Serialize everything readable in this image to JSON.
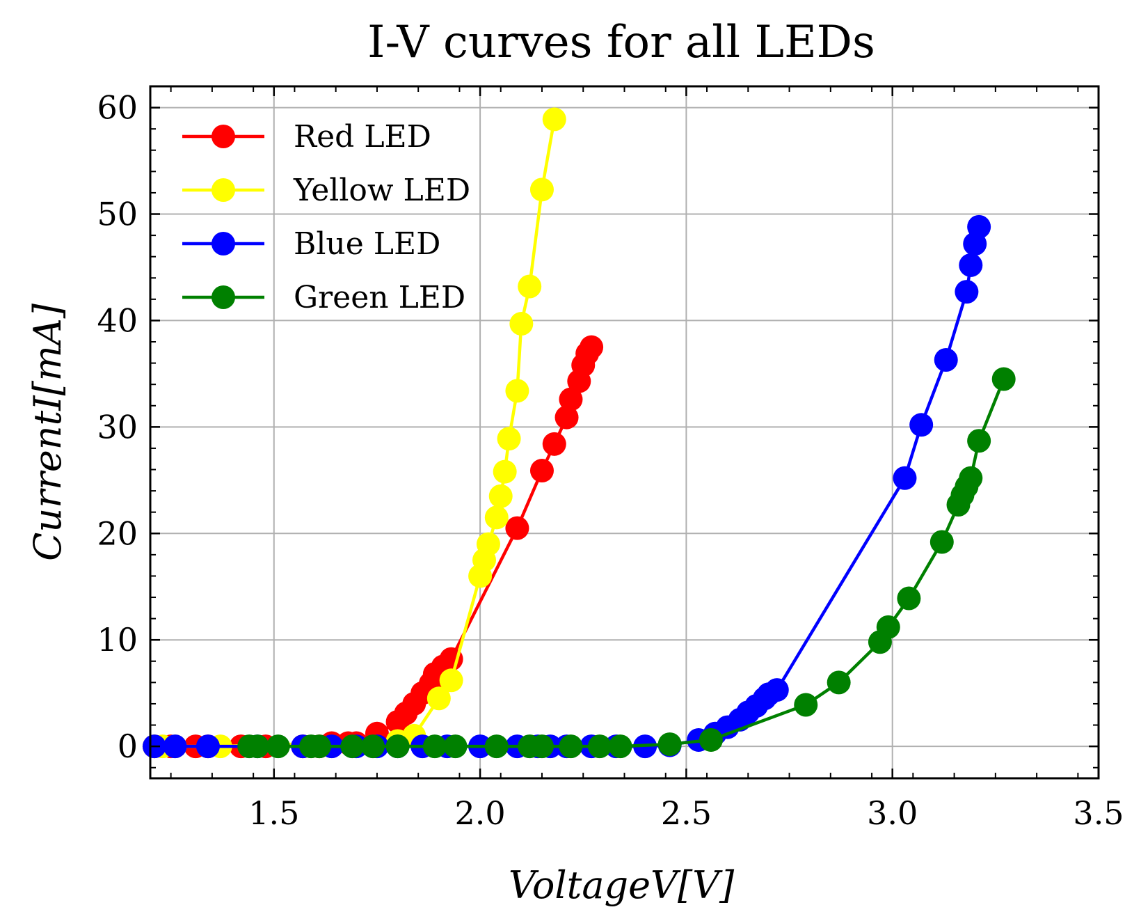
{
  "chart_data": {
    "type": "line",
    "title": "I-V curves for all LEDs",
    "xlabel": "VoltageV[V]",
    "ylabel": "CurrentI[mA]",
    "xlim": [
      1.2,
      3.5
    ],
    "ylim": [
      -3,
      62
    ],
    "xticks": [
      1.5,
      2.0,
      2.5,
      3.0,
      3.5
    ],
    "xtick_labels": [
      "1.5",
      "2.0",
      "2.5",
      "3.0",
      "3.5"
    ],
    "yticks": [
      0,
      10,
      20,
      30,
      40,
      50,
      60
    ],
    "ytick_labels": [
      "0",
      "10",
      "20",
      "30",
      "40",
      "50",
      "60"
    ],
    "grid": true,
    "legend_position": "top-left",
    "series": [
      {
        "name": "Red LED",
        "color": "#ff0000",
        "x": [
          1.21,
          1.25,
          1.31,
          1.34,
          1.42,
          1.48,
          1.57,
          1.61,
          1.64,
          1.68,
          1.7,
          1.75,
          1.8,
          1.82,
          1.84,
          1.86,
          1.88,
          1.89,
          1.91,
          1.93,
          2.09,
          2.15,
          2.18,
          2.21,
          2.22,
          2.24,
          2.25,
          2.26,
          2.27
        ],
        "y": [
          0,
          0,
          0,
          0,
          0,
          0,
          0,
          0,
          0.3,
          0.3,
          0.3,
          1.2,
          2.3,
          3.1,
          4.0,
          5.0,
          5.9,
          6.8,
          7.5,
          8.2,
          20.5,
          25.9,
          28.4,
          30.9,
          32.6,
          34.3,
          35.8,
          36.9,
          37.5
        ]
      },
      {
        "name": "Yellow LED",
        "color": "#ffff00",
        "x": [
          1.21,
          1.23,
          1.26,
          1.37,
          1.8,
          1.84,
          1.9,
          1.93,
          2.0,
          2.01,
          2.02,
          2.04,
          2.05,
          2.06,
          2.07,
          2.09,
          2.1,
          2.12,
          2.15,
          2.18
        ],
        "y": [
          0,
          0,
          0,
          0,
          0.5,
          1.0,
          4.5,
          6.2,
          16.0,
          17.5,
          19.0,
          21.5,
          23.5,
          25.8,
          28.9,
          33.4,
          39.7,
          43.2,
          52.3,
          58.9
        ]
      },
      {
        "name": "Blue LED",
        "color": "#0000ff",
        "x": [
          1.21,
          1.26,
          1.34,
          1.46,
          1.57,
          1.64,
          1.7,
          1.75,
          1.8,
          1.86,
          1.92,
          2.0,
          2.09,
          2.14,
          2.17,
          2.21,
          2.27,
          2.33,
          2.4,
          2.46,
          2.53,
          2.57,
          2.6,
          2.63,
          2.65,
          2.67,
          2.69,
          2.7,
          2.72,
          3.03,
          3.07,
          3.13,
          3.18,
          3.19,
          3.2,
          3.21
        ],
        "y": [
          0,
          0,
          0,
          0,
          0,
          0,
          0,
          0,
          0,
          0,
          0,
          0,
          0,
          0,
          0,
          0,
          0,
          0,
          0,
          0.1,
          0.6,
          1.2,
          1.8,
          2.5,
          3.2,
          3.8,
          4.5,
          4.9,
          5.3,
          25.2,
          30.2,
          36.3,
          42.7,
          45.2,
          47.2,
          48.8
        ]
      },
      {
        "name": "Green LED",
        "color": "#008000",
        "x": [
          1.44,
          1.46,
          1.51,
          1.59,
          1.61,
          1.69,
          1.74,
          1.8,
          1.89,
          1.94,
          2.04,
          2.12,
          2.15,
          2.22,
          2.29,
          2.34,
          2.46,
          2.56,
          2.79,
          2.87,
          2.97,
          2.99,
          3.04,
          3.12,
          3.16,
          3.17,
          3.18,
          3.19,
          3.21,
          3.27
        ],
        "y": [
          0,
          0,
          0,
          0,
          0,
          0,
          0,
          0,
          0,
          0,
          0,
          0,
          0,
          0,
          0,
          0,
          0.2,
          0.6,
          3.9,
          6.0,
          9.8,
          11.2,
          13.9,
          19.2,
          22.7,
          23.6,
          24.4,
          25.2,
          28.7,
          34.5
        ]
      }
    ]
  }
}
